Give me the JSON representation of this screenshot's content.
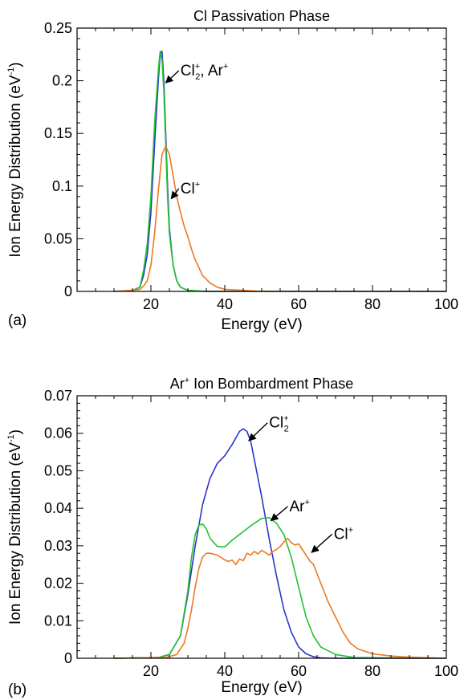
{
  "chart_data": [
    {
      "type": "line",
      "panel_label": "(a)",
      "title": "Cl Passivation Phase",
      "xlabel": "Energy (eV)",
      "ylabel": "Ion Energy Distribution (eV",
      "ylabel_sup": "-1",
      "ylabel_end": ")",
      "xlim": [
        0,
        100
      ],
      "ylim": [
        0,
        0.25
      ],
      "xticks": [
        20,
        40,
        60,
        80,
        100
      ],
      "xtick_labels": [
        "20",
        "40",
        "60",
        "80",
        "100"
      ],
      "yticks": [
        0,
        0.05,
        0.1,
        0.15,
        0.2,
        0.25
      ],
      "ytick_labels": [
        "0",
        "0.05",
        "0.1",
        "0.15",
        "0.2",
        "0.25"
      ],
      "grid": false,
      "series": [
        {
          "color": "#2b35c9",
          "x": [
            10,
            15,
            17,
            18,
            19,
            20,
            21,
            22,
            22.5,
            23,
            23.5,
            24,
            24.5,
            25,
            26,
            27,
            28,
            30,
            35,
            40,
            100
          ],
          "y": [
            0,
            0.001,
            0.004,
            0.015,
            0.035,
            0.075,
            0.14,
            0.2,
            0.225,
            0.228,
            0.2,
            0.15,
            0.1,
            0.06,
            0.025,
            0.01,
            0.004,
            0.001,
            0,
            0,
            0
          ]
        },
        {
          "color": "#22c22f",
          "x": [
            10,
            15,
            17,
            18,
            19,
            20,
            21,
            22,
            22.5,
            23,
            23.5,
            24,
            24.5,
            25,
            26,
            27,
            28,
            30,
            35,
            40,
            100
          ],
          "y": [
            0,
            0.001,
            0.004,
            0.02,
            0.045,
            0.09,
            0.16,
            0.21,
            0.228,
            0.22,
            0.19,
            0.14,
            0.09,
            0.055,
            0.025,
            0.01,
            0.004,
            0.001,
            0,
            0,
            0
          ]
        },
        {
          "color": "#ee7820",
          "x": [
            10,
            15,
            17,
            18,
            19,
            20,
            21,
            22,
            23,
            24,
            25,
            26,
            27,
            28,
            29,
            30,
            31,
            32,
            34,
            36,
            38,
            40,
            45,
            50,
            100
          ],
          "y": [
            0,
            0.001,
            0.002,
            0.005,
            0.01,
            0.025,
            0.055,
            0.095,
            0.13,
            0.138,
            0.13,
            0.11,
            0.09,
            0.075,
            0.062,
            0.052,
            0.04,
            0.03,
            0.015,
            0.008,
            0.004,
            0.002,
            0.001,
            0,
            0
          ]
        }
      ],
      "annotations": [
        {
          "base": "Cl",
          "sup": "+",
          "sub": "2",
          "rest": ", Ar",
          "rest_sup": "+",
          "x": 28,
          "y": 0.205,
          "arrow_to": [
            24,
            0.198
          ]
        },
        {
          "base": "Cl",
          "sup": "+",
          "sub": "",
          "rest": "",
          "rest_sup": "",
          "x": 28,
          "y": 0.093,
          "arrow_to": [
            25.5,
            0.088
          ]
        }
      ]
    },
    {
      "type": "line",
      "panel_label": "(b)",
      "title": "Ar",
      "title_sup": "+",
      "title_rest": " Ion Bombardment Phase",
      "xlabel": "Energy (eV)",
      "ylabel": "Ion Energy Distribution (eV",
      "ylabel_sup": "-1",
      "ylabel_end": ")",
      "xlim": [
        0,
        100
      ],
      "ylim": [
        0,
        0.07
      ],
      "xticks": [
        20,
        40,
        60,
        80,
        100
      ],
      "xtick_labels": [
        "20",
        "40",
        "60",
        "80",
        "100"
      ],
      "yticks": [
        0,
        0.01,
        0.02,
        0.03,
        0.04,
        0.05,
        0.06,
        0.07
      ],
      "ytick_labels": [
        "0",
        "0.01",
        "0.02",
        "0.03",
        "0.04",
        "0.05",
        "0.06",
        "0.07"
      ],
      "grid": false,
      "series": [
        {
          "color": "#2b35c9",
          "x": [
            10,
            22,
            25,
            28,
            30,
            32,
            34,
            36,
            38,
            40,
            42,
            44,
            45,
            46,
            47,
            48,
            50,
            52,
            54,
            56,
            58,
            60,
            62,
            64,
            66,
            70,
            100
          ],
          "y": [
            0,
            0.0002,
            0.001,
            0.006,
            0.017,
            0.03,
            0.041,
            0.048,
            0.052,
            0.054,
            0.057,
            0.0605,
            0.0612,
            0.0605,
            0.058,
            0.053,
            0.043,
            0.032,
            0.022,
            0.013,
            0.007,
            0.003,
            0.0012,
            0.0004,
            0.0001,
            0,
            0
          ]
        },
        {
          "color": "#22c22f",
          "x": [
            10,
            22,
            25,
            28,
            30,
            31,
            32,
            33,
            34,
            35,
            36,
            38,
            40,
            42,
            44,
            46,
            48,
            50,
            52,
            54,
            56,
            58,
            60,
            62,
            64,
            66,
            70,
            75,
            100
          ],
          "y": [
            0,
            0.0002,
            0.001,
            0.006,
            0.018,
            0.027,
            0.033,
            0.0355,
            0.0358,
            0.0345,
            0.032,
            0.0298,
            0.0297,
            0.0315,
            0.033,
            0.0345,
            0.036,
            0.0373,
            0.0375,
            0.036,
            0.033,
            0.027,
            0.019,
            0.011,
            0.006,
            0.003,
            0.001,
            0.0002,
            0
          ]
        },
        {
          "color": "#ee7820",
          "x": [
            10,
            24,
            27,
            29,
            30,
            31,
            32,
            33,
            34,
            35,
            36,
            38,
            40,
            41,
            42,
            43,
            44,
            45,
            46,
            47,
            48,
            49,
            50,
            51,
            52,
            53,
            54,
            55,
            56,
            57,
            58,
            59,
            60,
            61,
            62,
            63,
            64,
            66,
            68,
            70,
            72,
            74,
            76,
            80,
            85,
            90,
            100
          ],
          "y": [
            0,
            0.0002,
            0.001,
            0.004,
            0.008,
            0.013,
            0.019,
            0.024,
            0.027,
            0.028,
            0.028,
            0.0275,
            0.0262,
            0.0258,
            0.0262,
            0.025,
            0.0265,
            0.026,
            0.028,
            0.0275,
            0.0285,
            0.0278,
            0.0288,
            0.0282,
            0.0275,
            0.0285,
            0.029,
            0.0298,
            0.031,
            0.032,
            0.0308,
            0.0302,
            0.0305,
            0.029,
            0.0275,
            0.026,
            0.025,
            0.02,
            0.015,
            0.011,
            0.007,
            0.004,
            0.0025,
            0.0012,
            0.0006,
            0.0003,
            0
          ]
        }
      ],
      "annotations": [
        {
          "base": "Cl",
          "sup": "+",
          "sub": "2",
          "rest": "",
          "rest_sup": "",
          "x": 52,
          "y": 0.0615,
          "arrow_to": [
            46.5,
            0.058
          ]
        },
        {
          "base": "Ar",
          "sup": "+",
          "sub": "",
          "rest": "",
          "rest_sup": "",
          "x": 57.5,
          "y": 0.0392,
          "arrow_to": [
            52.5,
            0.0367
          ]
        },
        {
          "base": "Cl",
          "sup": "+",
          "sub": "",
          "rest": "",
          "rest_sup": "",
          "x": 69.5,
          "y": 0.0318,
          "arrow_to": [
            63.5,
            0.0282
          ]
        }
      ]
    }
  ]
}
